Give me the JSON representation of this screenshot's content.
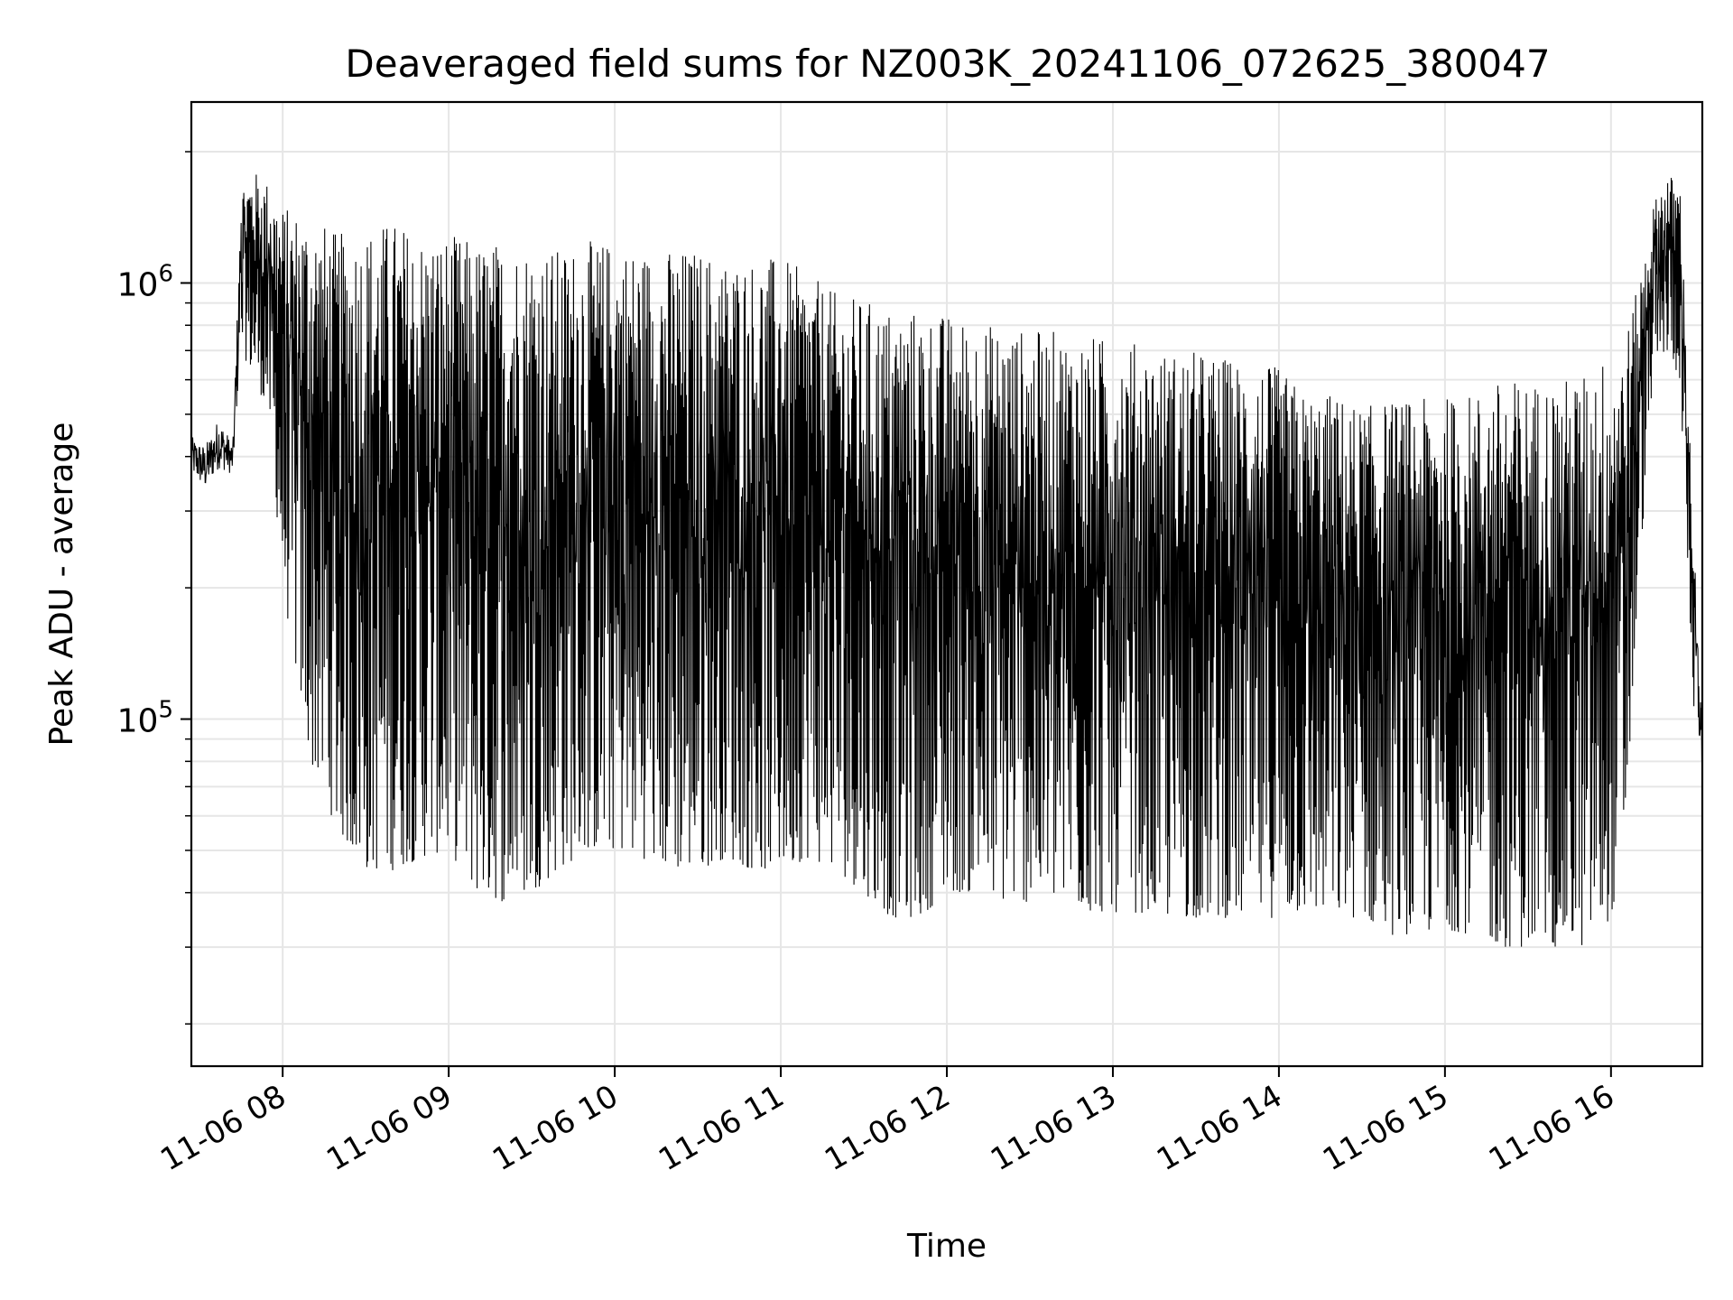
{
  "chart_data": {
    "type": "line",
    "title": "Deaveraged field sums for NZ003K_20241106_072625_380047",
    "xlabel": "Time",
    "ylabel": "Peak ADU - average",
    "yscale": "log",
    "ylim": [
      16000,
      2600000
    ],
    "xlim": [
      "2024-11-06 07:27",
      "2024-11-06 16:33"
    ],
    "x_ticks": [
      {
        "time": "2024-11-06 08:00",
        "label": "11-06 08"
      },
      {
        "time": "2024-11-06 09:00",
        "label": "11-06 09"
      },
      {
        "time": "2024-11-06 10:00",
        "label": "11-06 10"
      },
      {
        "time": "2024-11-06 11:00",
        "label": "11-06 11"
      },
      {
        "time": "2024-11-06 12:00",
        "label": "11-06 12"
      },
      {
        "time": "2024-11-06 13:00",
        "label": "11-06 13"
      },
      {
        "time": "2024-11-06 14:00",
        "label": "11-06 14"
      },
      {
        "time": "2024-11-06 15:00",
        "label": "11-06 15"
      },
      {
        "time": "2024-11-06 16:00",
        "label": "11-06 16"
      }
    ],
    "y_ticks": [
      {
        "value": 100000,
        "base": "10",
        "exp": "5"
      },
      {
        "value": 1000000,
        "base": "10",
        "exp": "6"
      }
    ],
    "grid": true,
    "legend": "none",
    "line_color": "#000000",
    "series": [
      {
        "time": [
          "2024-11-06 07:27",
          "2024-11-06 07:32",
          "2024-11-06 07:37",
          "2024-11-06 07:42",
          "2024-11-06 07:45",
          "2024-11-06 07:50",
          "2024-11-06 07:55",
          "2024-11-06 08:00",
          "2024-11-06 08:10",
          "2024-11-06 08:20",
          "2024-11-06 08:30",
          "2024-11-06 08:40",
          "2024-11-06 08:50",
          "2024-11-06 09:00",
          "2024-11-06 09:10",
          "2024-11-06 09:20",
          "2024-11-06 09:30",
          "2024-11-06 09:40",
          "2024-11-06 09:50",
          "2024-11-06 10:00",
          "2024-11-06 10:10",
          "2024-11-06 10:20",
          "2024-11-06 10:30",
          "2024-11-06 10:40",
          "2024-11-06 10:50",
          "2024-11-06 11:00",
          "2024-11-06 11:10",
          "2024-11-06 11:20",
          "2024-11-06 11:30",
          "2024-11-06 11:40",
          "2024-11-06 11:50",
          "2024-11-06 12:00",
          "2024-11-06 12:10",
          "2024-11-06 12:20",
          "2024-11-06 12:30",
          "2024-11-06 12:40",
          "2024-11-06 12:50",
          "2024-11-06 13:00",
          "2024-11-06 13:10",
          "2024-11-06 13:20",
          "2024-11-06 13:30",
          "2024-11-06 13:40",
          "2024-11-06 13:50",
          "2024-11-06 14:00",
          "2024-11-06 14:10",
          "2024-11-06 14:20",
          "2024-11-06 14:30",
          "2024-11-06 14:40",
          "2024-11-06 14:50",
          "2024-11-06 15:00",
          "2024-11-06 15:10",
          "2024-11-06 15:20",
          "2024-11-06 15:30",
          "2024-11-06 15:40",
          "2024-11-06 15:50",
          "2024-11-06 16:00",
          "2024-11-06 16:05",
          "2024-11-06 16:10",
          "2024-11-06 16:15",
          "2024-11-06 16:20",
          "2024-11-06 16:25",
          "2024-11-06 16:30",
          "2024-11-06 16:33"
        ],
        "upper": [
          450000,
          430000,
          500000,
          430000,
          1700000,
          1800000,
          1700000,
          1500000,
          1450000,
          1300000,
          1350000,
          1400000,
          1300000,
          1300000,
          1250000,
          1250000,
          1250000,
          1200000,
          1250000,
          1250000,
          1200000,
          1200000,
          1200000,
          1150000,
          1150000,
          1150000,
          1050000,
          950000,
          920000,
          880000,
          870000,
          850000,
          820000,
          800000,
          780000,
          780000,
          760000,
          750000,
          730000,
          700000,
          700000,
          680000,
          660000,
          640000,
          560000,
          560000,
          520000,
          540000,
          540000,
          550000,
          560000,
          600000,
          600000,
          600000,
          620000,
          700000,
          750000,
          1000000,
          1500000,
          1800000,
          1700000,
          250000,
          100000
        ],
        "lower": [
          360000,
          330000,
          370000,
          360000,
          700000,
          600000,
          500000,
          200000,
          80000,
          55000,
          45000,
          45000,
          48000,
          50000,
          40000,
          38000,
          40000,
          45000,
          50000,
          50000,
          48000,
          45000,
          45000,
          48000,
          45000,
          45000,
          48000,
          45000,
          40000,
          35000,
          35000,
          40000,
          40000,
          38000,
          38000,
          38000,
          36000,
          36000,
          36000,
          35000,
          35000,
          35000,
          35000,
          35000,
          36000,
          35000,
          35000,
          32000,
          32000,
          33000,
          32000,
          30000,
          30000,
          30000,
          30000,
          35000,
          50000,
          200000,
          600000,
          700000,
          600000,
          100000,
          75000
        ]
      }
    ]
  }
}
